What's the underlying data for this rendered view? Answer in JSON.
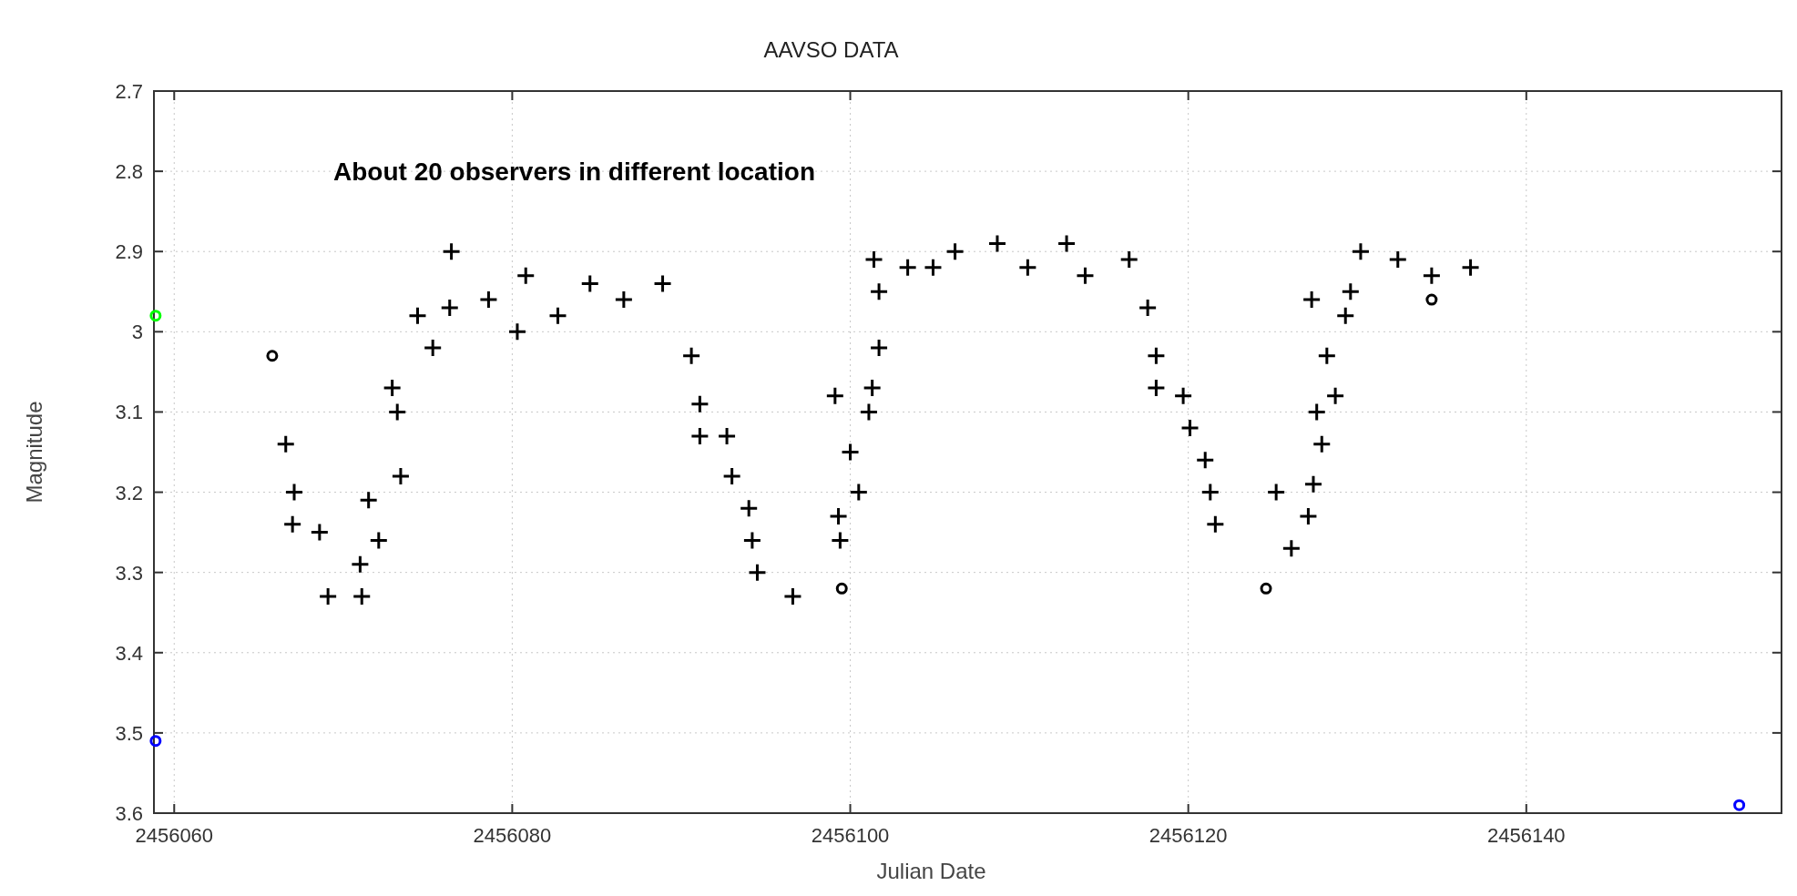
{
  "chart_data": {
    "type": "scatter",
    "title": "AAVSO DATA",
    "xlabel": "Julian Date",
    "ylabel": "Magnitude",
    "annotations": [
      "About 20 observers in different location"
    ],
    "xlim": [
      2456058.8,
      2456155.1
    ],
    "xticks": [
      2456060,
      2456080,
      2456100,
      2456120,
      2456140
    ],
    "ylim": [
      3.6,
      2.7
    ],
    "yticks": [
      2.7,
      2.8,
      2.9,
      3,
      3.1,
      3.2,
      3.3,
      3.4,
      3.5,
      3.6
    ],
    "grid": true,
    "line_style": "dotted",
    "series": [
      {
        "color": "#000000",
        "marker": "cross",
        "x": [
          2456066.6,
          2456067.1,
          2456067.0,
          2456068.6,
          2456069.1,
          2456071.0,
          2456071.1,
          2456071.5,
          2456072.1,
          2456072.9,
          2456073.2,
          2456073.4,
          2456074.4,
          2456075.3,
          2456076.4,
          2456076.3,
          2456078.6,
          2456080.3,
          2456080.8,
          2456082.7,
          2456084.6,
          2456086.6,
          2456088.9,
          2456090.6,
          2456091.1,
          2456091.1,
          2456092.7,
          2456093.0,
          2456094.0,
          2456094.2,
          2456094.5,
          2456096.6,
          2456099.1,
          2456099.3,
          2456099.4,
          2456100.0,
          2456100.5,
          2456101.3,
          2456101.1,
          2456101.4,
          2456101.7,
          2456101.7,
          2456103.4,
          2456104.9,
          2456106.2,
          2456108.7,
          2456110.5,
          2456112.8,
          2456113.9,
          2456116.5,
          2456117.6,
          2456118.1,
          2456118.1,
          2456119.7,
          2456120.1,
          2456121.0,
          2456121.3,
          2456121.6,
          2456125.2,
          2456126.1,
          2456127.1,
          2456127.4,
          2456127.3,
          2456127.6,
          2456127.9,
          2456128.2,
          2456128.7,
          2456129.3,
          2456129.6,
          2456130.2,
          2456132.4,
          2456134.4,
          2456136.7
        ],
        "values": [
          3.14,
          3.2,
          3.24,
          3.25,
          3.33,
          3.29,
          3.33,
          3.21,
          3.26,
          3.07,
          3.1,
          3.18,
          2.98,
          3.02,
          2.9,
          2.97,
          2.96,
          3.0,
          2.93,
          2.98,
          2.94,
          2.96,
          2.94,
          3.03,
          3.09,
          3.13,
          3.13,
          3.18,
          3.22,
          3.26,
          3.3,
          3.33,
          3.08,
          3.23,
          3.26,
          3.15,
          3.2,
          3.07,
          3.1,
          2.91,
          2.95,
          3.02,
          2.92,
          2.92,
          2.9,
          2.89,
          2.92,
          2.89,
          2.93,
          2.91,
          2.97,
          3.03,
          3.07,
          3.08,
          3.12,
          3.16,
          3.2,
          3.24,
          3.2,
          3.27,
          3.23,
          3.19,
          2.96,
          3.1,
          3.14,
          3.03,
          3.08,
          2.98,
          2.95,
          2.9,
          2.91,
          2.93,
          2.92
        ]
      },
      {
        "color": "#000000",
        "marker": "circle",
        "x": [
          2456065.8,
          2456099.5,
          2456124.6,
          2456134.4
        ],
        "values": [
          3.03,
          3.32,
          3.32,
          2.96
        ]
      },
      {
        "color": "#00ff00",
        "marker": "circle",
        "x": [
          2456058.9
        ],
        "values": [
          2.98
        ]
      },
      {
        "color": "#0000ff",
        "marker": "circle",
        "x": [
          2456058.9,
          2456152.6
        ],
        "values": [
          3.51,
          3.59
        ]
      }
    ]
  }
}
